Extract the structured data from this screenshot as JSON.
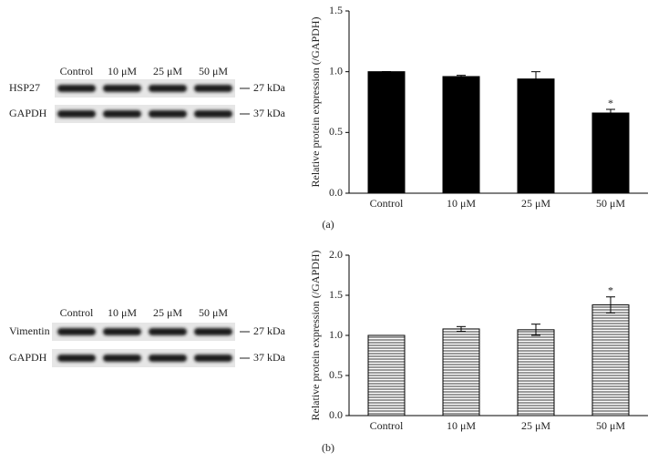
{
  "blots": [
    {
      "lanes": [
        "Control",
        "10 μM",
        "25 μM",
        "50 μM"
      ],
      "rows": [
        {
          "label": "HSP27",
          "marker": "27 kDa"
        },
        {
          "label": "GAPDH",
          "marker": "37 kDa"
        }
      ]
    },
    {
      "lanes": [
        "Control",
        "10 μM",
        "25 μM",
        "50 μM"
      ],
      "rows": [
        {
          "label": "Vimentin",
          "marker": "27 kDa"
        },
        {
          "label": "GAPDH",
          "marker": "37 kDa"
        }
      ]
    }
  ],
  "chart_data": [
    {
      "type": "bar",
      "panel": "(a)",
      "y_label": "Relative protein expression (/GAPDH)",
      "categories": [
        "Control",
        "10 μM",
        "25 μM",
        "50 μM"
      ],
      "values": [
        1.0,
        0.96,
        0.94,
        0.66
      ],
      "errors": [
        0,
        0.01,
        0.06,
        0.03
      ],
      "significance": [
        null,
        null,
        null,
        "*"
      ],
      "color": "#000000",
      "hatch": false,
      "ylim": [
        0,
        1.5
      ],
      "yticks": [
        {
          "value": 0,
          "label": "0.0"
        },
        {
          "value": 0.5,
          "label": "0.5"
        },
        {
          "value": 1,
          "label": "1.0"
        },
        {
          "value": 1.5,
          "label": "1.5"
        }
      ]
    },
    {
      "type": "bar",
      "panel": "(b)",
      "y_label": "Relative protein expression (/GAPDH)",
      "categories": [
        "Control",
        "10 μM",
        "25 μM",
        "50 μM"
      ],
      "values": [
        1.0,
        1.08,
        1.07,
        1.38
      ],
      "errors": [
        0,
        0.03,
        0.07,
        0.1
      ],
      "significance": [
        null,
        null,
        null,
        "*"
      ],
      "color": "#000000",
      "hatch": true,
      "ylim": [
        0,
        2
      ],
      "yticks": [
        {
          "value": 0,
          "label": "0.0"
        },
        {
          "value": 0.5,
          "label": "0.5"
        },
        {
          "value": 1,
          "label": "1.0"
        },
        {
          "value": 1.5,
          "label": "1.5"
        },
        {
          "value": 2,
          "label": "2.0"
        }
      ]
    }
  ]
}
